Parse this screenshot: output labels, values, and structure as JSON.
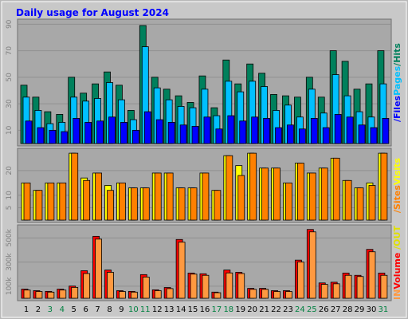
{
  "chart_data": [
    {
      "type": "bar",
      "title": "Daily usage for August 2024",
      "ylim": [
        0,
        92
      ],
      "yticks": [
        10,
        30,
        50,
        70,
        90
      ],
      "grid": true,
      "series": [
        {
          "name": "/Hits",
          "color": "#00805c",
          "values": [
            44,
            35,
            24,
            22,
            50,
            38,
            45,
            54,
            44,
            25,
            89,
            50,
            41,
            36,
            31,
            51,
            27,
            63,
            45,
            60,
            53,
            37,
            36,
            35,
            50,
            35,
            70,
            62,
            41,
            45,
            70
          ]
        },
        {
          "name": "Pages",
          "color": "#00c0ff",
          "values": [
            35,
            25,
            15,
            16,
            35,
            32,
            34,
            46,
            33,
            18,
            73,
            42,
            33,
            28,
            27,
            41,
            21,
            47,
            39,
            47,
            43,
            25,
            29,
            20,
            41,
            23,
            52,
            36,
            24,
            20,
            45
          ]
        },
        {
          "name": "/Files",
          "color": "#0000ff",
          "values": [
            17,
            12,
            10,
            9,
            19,
            16,
            17,
            20,
            16,
            10,
            24,
            18,
            16,
            14,
            13,
            20,
            11,
            21,
            17,
            20,
            19,
            12,
            14,
            11,
            19,
            12,
            22,
            20,
            14,
            12,
            19
          ]
        }
      ]
    },
    {
      "type": "bar",
      "ylim": [
        0,
        28
      ],
      "yticks": [
        5,
        10,
        20
      ],
      "grid": true,
      "series": [
        {
          "name": "Visits",
          "color": "#ffff00",
          "values": [
            15,
            12,
            15,
            15,
            27,
            17,
            19,
            14,
            15,
            13,
            13,
            19,
            19,
            13,
            13,
            19,
            12,
            26,
            22,
            27,
            21,
            21,
            15,
            23,
            19,
            21,
            25,
            16,
            13,
            15,
            27
          ]
        },
        {
          "name": "/Sites",
          "color": "#ff8000",
          "values": [
            15,
            12,
            15,
            15,
            27,
            16,
            19,
            12,
            15,
            13,
            13,
            19,
            19,
            13,
            13,
            19,
            12,
            26,
            18,
            27,
            21,
            21,
            15,
            23,
            19,
            21,
            25,
            16,
            13,
            14,
            27
          ]
        }
      ]
    },
    {
      "type": "bar",
      "ylim": [
        0,
        588000
      ],
      "yticks": [
        {
          "value": 100000,
          "label": "100k"
        },
        {
          "value": 300000,
          "label": "300k"
        },
        {
          "value": 500000,
          "label": "500k"
        }
      ],
      "grid": true,
      "series": [
        {
          "name": "Volume",
          "color": "#ff0000",
          "values": [
            76000,
            63000,
            57000,
            76000,
            101000,
            228000,
            513000,
            234000,
            63000,
            57000,
            196000,
            70000,
            89000,
            487000,
            209000,
            203000,
            51000,
            234000,
            215000,
            82000,
            82000,
            63000,
            63000,
            316000,
            570000,
            127000,
            133000,
            209000,
            190000,
            405000,
            209000
          ]
        },
        {
          "name": " IN",
          "color": "#ff9940",
          "values": [
            68000,
            56000,
            51000,
            68000,
            90000,
            205000,
            490000,
            215000,
            56000,
            51000,
            176000,
            63000,
            80000,
            465000,
            200000,
            190000,
            46000,
            210000,
            205000,
            74000,
            74000,
            56000,
            56000,
            300000,
            550000,
            115000,
            120000,
            190000,
            180000,
            385000,
            190000
          ]
        }
      ],
      "label_extra": {
        "text": " /OUT",
        "color": "#e0e000"
      },
      "categories": [
        "1",
        "2",
        "3",
        "4",
        "5",
        "6",
        "7",
        "8",
        "9",
        "10",
        "11",
        "12",
        "13",
        "14",
        "15",
        "16",
        "17",
        "18",
        "19",
        "20",
        "21",
        "22",
        "23",
        "24",
        "25",
        "26",
        "27",
        "28",
        "29",
        "30",
        "31"
      ],
      "category_colors": [
        "#000000",
        "#000000",
        "#008040",
        "#008040",
        "#000000",
        "#000000",
        "#000000",
        "#000000",
        "#000000",
        "#008040",
        "#008040",
        "#000000",
        "#000000",
        "#000000",
        "#000000",
        "#000000",
        "#008040",
        "#008040",
        "#000000",
        "#000000",
        "#000000",
        "#000000",
        "#000000",
        "#008040",
        "#008040",
        "#000000",
        "#000000",
        "#000000",
        "#000000",
        "#000000",
        "#008040"
      ]
    }
  ]
}
